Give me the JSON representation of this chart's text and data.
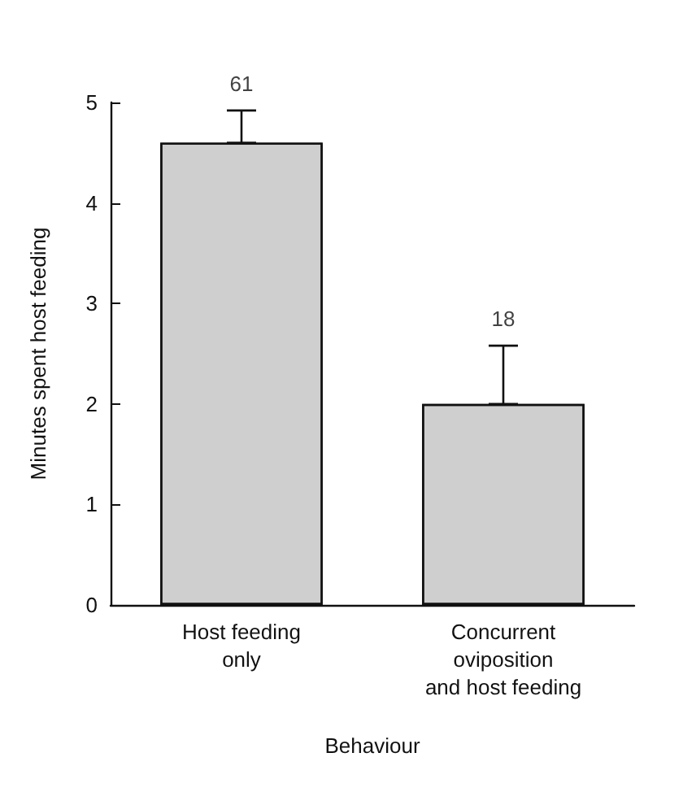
{
  "chart_data": {
    "type": "bar",
    "xlabel": "Behaviour",
    "ylabel": "Minutes spent host feeding",
    "categories": [
      "Host feeding\nonly",
      "Concurrent\noviposition\nand host feeding"
    ],
    "values": [
      4.6,
      2.0
    ],
    "color": "#cfcfcf",
    "errors": [
      [
        4.6,
        4.92
      ],
      [
        2.0,
        2.58
      ]
    ],
    "annotations": [
      {
        "text": "61",
        "x": "Host feeding\nonly",
        "y": 4.92
      },
      {
        "text": "18",
        "x": "Concurrent\noviposition\nand host feeding",
        "y": 2.58
      }
    ],
    "ylim": [
      0,
      5
    ],
    "yticks": [
      0,
      1,
      2,
      3,
      4,
      5
    ],
    "grid": false
  }
}
